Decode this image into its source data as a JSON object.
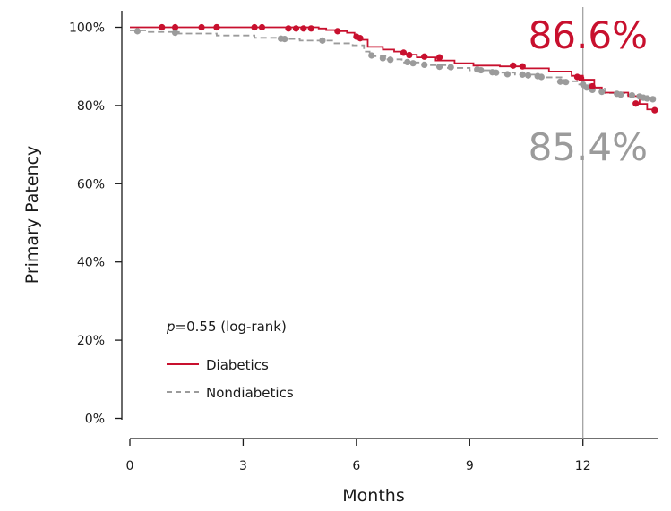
{
  "chart_data": {
    "type": "line",
    "title": "",
    "xlabel": "Months",
    "ylabel": "Primary Patency",
    "xlim": [
      0,
      14
    ],
    "ylim": [
      0,
      100
    ],
    "x_ticks": [
      0,
      3,
      6,
      9,
      12
    ],
    "x_tick_labels": [
      "0",
      "3",
      "6",
      "9",
      "12"
    ],
    "y_ticks": [
      0,
      20,
      40,
      60,
      80,
      100
    ],
    "y_tick_labels": [
      "0%",
      "20%",
      "40%",
      "60%",
      "80%",
      "100%"
    ],
    "reference_line_x": 12,
    "annotation": {
      "p_label": "p",
      "p_text": "=0.55 (log-rank)"
    },
    "callouts": [
      {
        "text": "86.6%",
        "color": "#c8102e"
      },
      {
        "text": "85.4%",
        "color": "#9b9b9b"
      }
    ],
    "series": [
      {
        "name": "Diabetics",
        "color": "#c8102e",
        "style": "solid",
        "steps": [
          [
            0,
            100
          ],
          [
            5.0,
            99.7
          ],
          [
            5.2,
            99.3
          ],
          [
            5.5,
            99.0
          ],
          [
            5.75,
            98.6
          ],
          [
            5.95,
            97.8
          ],
          [
            6.1,
            96.8
          ],
          [
            6.3,
            95.0
          ],
          [
            6.7,
            94.3
          ],
          [
            7.0,
            93.8
          ],
          [
            7.3,
            93.0
          ],
          [
            7.6,
            92.3
          ],
          [
            8.1,
            91.5
          ],
          [
            8.6,
            90.8
          ],
          [
            9.1,
            90.2
          ],
          [
            9.8,
            90.0
          ],
          [
            10.4,
            89.5
          ],
          [
            11.1,
            88.7
          ],
          [
            11.7,
            87.6
          ],
          [
            12.0,
            86.6
          ],
          [
            12.3,
            84.6
          ],
          [
            12.5,
            83.3
          ],
          [
            13.2,
            82.4
          ],
          [
            13.5,
            80.4
          ],
          [
            13.7,
            79.0
          ],
          [
            13.9,
            78.8
          ]
        ],
        "censor": [
          [
            0.85,
            100
          ],
          [
            1.2,
            100
          ],
          [
            1.9,
            100
          ],
          [
            2.3,
            100
          ],
          [
            2.3,
            100
          ],
          [
            3.3,
            100
          ],
          [
            3.5,
            100
          ],
          [
            4.2,
            99.7
          ],
          [
            4.4,
            99.7
          ],
          [
            4.6,
            99.7
          ],
          [
            4.8,
            99.7
          ],
          [
            5.5,
            99.0
          ],
          [
            6.0,
            97.6
          ],
          [
            6.1,
            97.2
          ],
          [
            7.25,
            93.5
          ],
          [
            7.4,
            92.9
          ],
          [
            7.8,
            92.5
          ],
          [
            8.2,
            92.3
          ],
          [
            10.15,
            90.2
          ],
          [
            10.4,
            90.0
          ],
          [
            11.85,
            87.3
          ],
          [
            11.95,
            87.0
          ],
          [
            12.25,
            84.9
          ],
          [
            13.4,
            80.5
          ],
          [
            13.9,
            78.8
          ]
        ]
      },
      {
        "name": "Nondiabetics",
        "color": "#9b9b9b",
        "style": "dashed",
        "steps": [
          [
            0,
            99.2
          ],
          [
            0.5,
            98.8
          ],
          [
            1.3,
            98.4
          ],
          [
            2.3,
            97.9
          ],
          [
            3.3,
            97.3
          ],
          [
            3.9,
            97.0
          ],
          [
            4.5,
            96.6
          ],
          [
            5.4,
            95.9
          ],
          [
            5.9,
            95.4
          ],
          [
            6.2,
            93.8
          ],
          [
            6.35,
            92.6
          ],
          [
            6.8,
            91.8
          ],
          [
            7.2,
            91.0
          ],
          [
            7.8,
            90.3
          ],
          [
            8.4,
            89.6
          ],
          [
            9.0,
            89.0
          ],
          [
            9.6,
            88.4
          ],
          [
            10.2,
            87.9
          ],
          [
            10.8,
            87.2
          ],
          [
            11.5,
            86.2
          ],
          [
            11.9,
            85.4
          ],
          [
            12.2,
            84.3
          ],
          [
            12.6,
            83.2
          ],
          [
            13.1,
            82.7
          ],
          [
            13.5,
            82.1
          ],
          [
            13.9,
            81.8
          ]
        ],
        "censor": [
          [
            0.2,
            99.0
          ],
          [
            1.2,
            98.6
          ],
          [
            4.0,
            97.1
          ],
          [
            4.1,
            97.0
          ],
          [
            5.1,
            96.6
          ],
          [
            6.4,
            92.8
          ],
          [
            6.7,
            92.1
          ],
          [
            6.9,
            91.7
          ],
          [
            7.35,
            91.1
          ],
          [
            7.5,
            90.8
          ],
          [
            7.8,
            90.4
          ],
          [
            8.2,
            89.9
          ],
          [
            8.5,
            89.8
          ],
          [
            9.2,
            89.2
          ],
          [
            9.3,
            89.0
          ],
          [
            9.6,
            88.5
          ],
          [
            9.7,
            88.4
          ],
          [
            10.0,
            88.0
          ],
          [
            10.4,
            87.9
          ],
          [
            10.55,
            87.7
          ],
          [
            10.8,
            87.5
          ],
          [
            10.9,
            87.3
          ],
          [
            11.4,
            86.1
          ],
          [
            11.55,
            86.0
          ],
          [
            12.0,
            85.4
          ],
          [
            12.1,
            84.6
          ],
          [
            12.25,
            84.0
          ],
          [
            12.5,
            83.5
          ],
          [
            12.9,
            83.0
          ],
          [
            13.0,
            82.8
          ],
          [
            13.3,
            82.6
          ],
          [
            13.5,
            82.3
          ],
          [
            13.6,
            82.0
          ],
          [
            13.7,
            81.8
          ],
          [
            13.85,
            81.6
          ]
        ]
      }
    ]
  }
}
